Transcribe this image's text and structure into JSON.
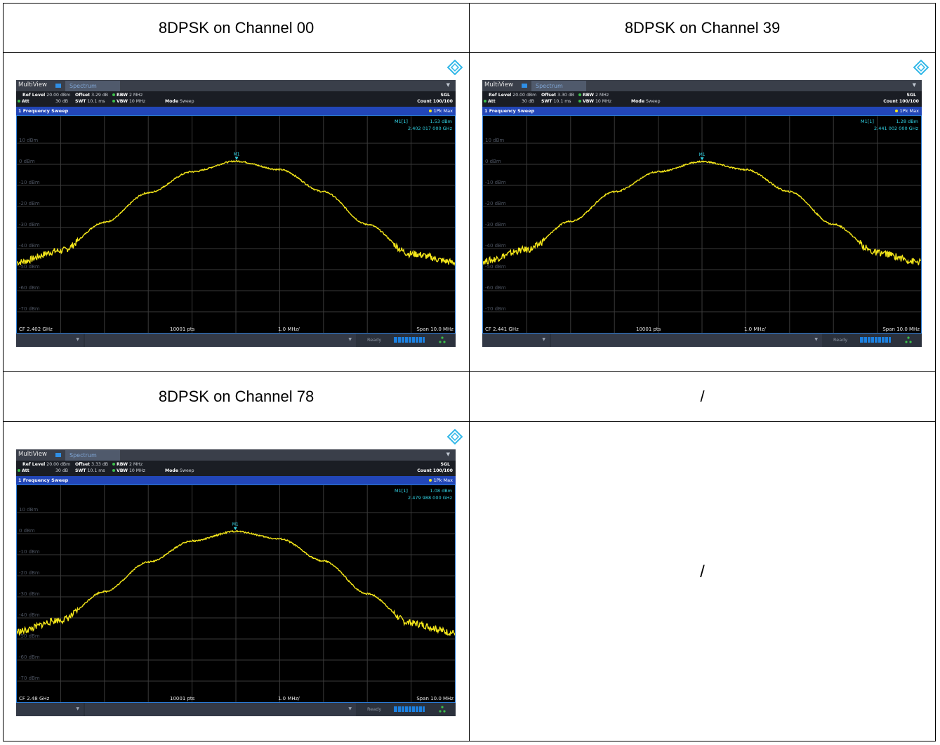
{
  "headers": {
    "h1": "8DPSK on Channel 00",
    "h2": "8DPSK on Channel 39",
    "h3": "8DPSK on Channel 78",
    "h4": "/"
  },
  "empty_cell_text": "/",
  "instrument": {
    "multiview_label": "MultiView",
    "tab_label": "Spectrum",
    "ref_level_label": "Ref Level",
    "ref_level_value": "20.00 dBm",
    "offset_label": "Offset",
    "rbw_label": "RBW",
    "rbw_value": "2 MHz",
    "att_label": "Att",
    "att_value": "30 dB",
    "swt_label": "SWT",
    "swt_value": "10.1 ms",
    "vbw_label": "VBW",
    "vbw_value": "10 MHz",
    "mode_label": "Mode",
    "mode_value": "Sweep",
    "sgl_label": "SGL",
    "count_label": "Count 100/100",
    "window_title": "1 Frequency Sweep",
    "trace_label": "1Pk Max",
    "marker_name": "M1[1]",
    "marker_tag": "M1",
    "points_label": "10001 pts",
    "div_label": "1.0 MHz/",
    "span_label": "Span 10.0 MHz",
    "ready_label": "Ready"
  },
  "colors": {
    "trace": "#f5e71a",
    "marker": "#33d6e8",
    "window_bar": "#2246b8",
    "frame": "#2b7bd6"
  },
  "chart_data": [
    {
      "type": "line",
      "title": "8DPSK on Channel 00",
      "offset": "3.29 dB",
      "cf_label": "CF 2.402 GHz",
      "marker_level": "1.53 dBm",
      "marker_freq": "2.402 017 000 GHz",
      "center_ghz": 2.402,
      "span_mhz": 10.0,
      "xlim_mhz": [
        2397.0,
        2407.0
      ],
      "ylim_dbm": [
        -80,
        20
      ],
      "yticks": [
        "10 dBm",
        "0 dBm",
        "-10 dBm",
        "-20 dBm",
        "-30 dBm",
        "-40 dBm",
        "-50 dBm",
        "-60 dBm",
        "-70 dBm"
      ],
      "ytick_values": [
        10,
        0,
        -10,
        -20,
        -30,
        -40,
        -50,
        -60,
        -70
      ],
      "grid": true,
      "series": [
        {
          "offset_mhz": [
            -5,
            -4,
            -3,
            -2,
            -1,
            0,
            1,
            2,
            3,
            4,
            5
          ],
          "dbm": [
            -46.5,
            -41,
            -27.5,
            -13.5,
            -3.5,
            1.5,
            -2.5,
            -13,
            -28.5,
            -42.5,
            -46.5
          ]
        }
      ],
      "marker_x_mhz": 2402.017
    },
    {
      "type": "line",
      "title": "8DPSK on Channel 39",
      "offset": "3.30 dB",
      "cf_label": "CF 2.441 GHz",
      "marker_level": "1.28 dBm",
      "marker_freq": "2.441 002 000 GHz",
      "center_ghz": 2.441,
      "span_mhz": 10.0,
      "xlim_mhz": [
        2436.0,
        2446.0
      ],
      "ylim_dbm": [
        -80,
        20
      ],
      "yticks": [
        "10 dBm",
        "0 dBm",
        "-10 dBm",
        "-20 dBm",
        "-30 dBm",
        "-40 dBm",
        "-50 dBm",
        "-60 dBm",
        "-70 dBm"
      ],
      "ytick_values": [
        10,
        0,
        -10,
        -20,
        -30,
        -40,
        -50,
        -60,
        -70
      ],
      "grid": true,
      "series": [
        {
          "offset_mhz": [
            -5,
            -4,
            -3,
            -2,
            -1,
            0,
            1,
            2,
            3,
            4,
            5
          ],
          "dbm": [
            -46,
            -40.5,
            -27,
            -13,
            -3.5,
            1.3,
            -2.5,
            -13,
            -28.5,
            -42,
            -46.5
          ]
        }
      ],
      "marker_x_mhz": 2441.002
    },
    {
      "type": "line",
      "title": "8DPSK on Channel 78",
      "offset": "3.33 dB",
      "cf_label": "CF 2.48 GHz",
      "marker_level": "1.08 dBm",
      "marker_freq": "2.479 988 000 GHz",
      "center_ghz": 2.48,
      "span_mhz": 10.0,
      "xlim_mhz": [
        2475.0,
        2485.0
      ],
      "ylim_dbm": [
        -80,
        20
      ],
      "yticks": [
        "10 dBm",
        "0 dBm",
        "-10 dBm",
        "-20 dBm",
        "-30 dBm",
        "-40 dBm",
        "-50 dBm",
        "-60 dBm",
        "-70 dBm"
      ],
      "ytick_values": [
        10,
        0,
        -10,
        -20,
        -30,
        -40,
        -50,
        -60,
        -70
      ],
      "grid": true,
      "series": [
        {
          "offset_mhz": [
            -5,
            -4,
            -3,
            -2,
            -1,
            0,
            1,
            2,
            3,
            4,
            5
          ],
          "dbm": [
            -46.5,
            -41,
            -27.5,
            -13.5,
            -3.5,
            1.1,
            -2.5,
            -13,
            -28.5,
            -42.5,
            -47
          ]
        }
      ],
      "marker_x_mhz": 2479.988
    }
  ]
}
